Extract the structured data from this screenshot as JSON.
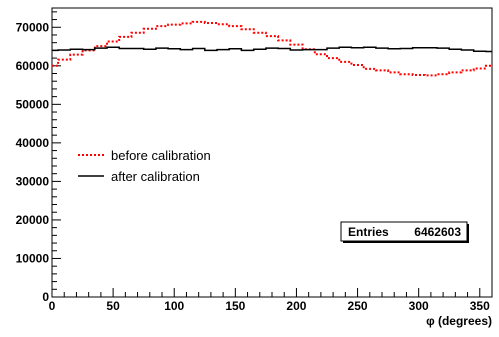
{
  "chart_data": {
    "type": "line",
    "title": "",
    "xlabel": "φ (degrees)",
    "ylabel": "",
    "xlim": [
      0,
      360
    ],
    "ylim": [
      0,
      75000
    ],
    "x_ticks": [
      0,
      50,
      100,
      150,
      200,
      250,
      300,
      350
    ],
    "y_ticks": [
      0,
      10000,
      20000,
      30000,
      40000,
      50000,
      60000,
      70000
    ],
    "grid": false,
    "legend_position": "middle-left",
    "series": [
      {
        "name": "before calibration",
        "color": "#ff0000",
        "style": "dotted",
        "x": [
          0,
          10,
          20,
          30,
          40,
          50,
          60,
          70,
          80,
          90,
          100,
          110,
          120,
          130,
          140,
          150,
          160,
          170,
          180,
          190,
          200,
          210,
          220,
          230,
          240,
          250,
          260,
          270,
          280,
          290,
          300,
          310,
          320,
          330,
          340,
          350,
          360
        ],
        "y": [
          60000,
          61600,
          62900,
          64000,
          65100,
          66300,
          67500,
          68600,
          69600,
          70300,
          70700,
          71000,
          71400,
          71100,
          70800,
          70300,
          69500,
          68600,
          67700,
          66600,
          65500,
          64300,
          63000,
          62000,
          61000,
          60200,
          59200,
          58800,
          58300,
          57800,
          57600,
          57500,
          57800,
          58300,
          58800,
          59300,
          60000
        ]
      },
      {
        "name": "after calibration",
        "color": "#000000",
        "style": "solid",
        "x": [
          0,
          10,
          20,
          30,
          40,
          50,
          60,
          70,
          80,
          90,
          100,
          110,
          120,
          130,
          140,
          150,
          160,
          170,
          180,
          190,
          200,
          210,
          220,
          230,
          240,
          250,
          260,
          270,
          280,
          290,
          300,
          310,
          320,
          330,
          340,
          350,
          360
        ],
        "y": [
          64000,
          64100,
          64300,
          64200,
          64600,
          64800,
          64500,
          64500,
          64300,
          64600,
          64400,
          64200,
          64500,
          64000,
          64200,
          64400,
          64000,
          64300,
          64600,
          64500,
          64100,
          64200,
          64200,
          64600,
          64800,
          64700,
          64800,
          64600,
          64400,
          64500,
          64700,
          64700,
          64600,
          64300,
          64100,
          63800,
          63700
        ]
      }
    ],
    "stats": {
      "label": "Entries",
      "value": "6462603"
    }
  }
}
